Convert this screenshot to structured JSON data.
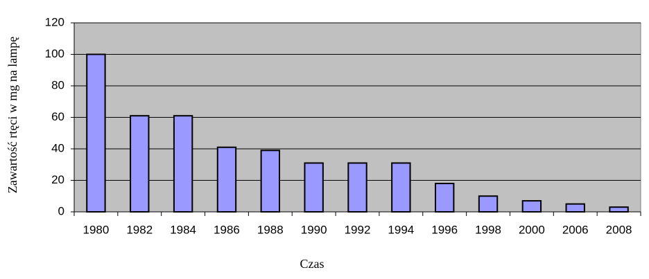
{
  "chart_data": {
    "type": "bar",
    "x_label": "Czas",
    "y_label": "Zawartość rtęci w mg na lampę",
    "categories": [
      "1980",
      "1982",
      "1984",
      "1986",
      "1988",
      "1990",
      "1992",
      "1994",
      "1996",
      "1998",
      "2000",
      "2006",
      "2008"
    ],
    "values": [
      100,
      61,
      61,
      41,
      39,
      31,
      31,
      31,
      18,
      10,
      7,
      5,
      3
    ],
    "color": "#9999ff",
    "ylim": [
      0,
      120
    ],
    "yticks": [
      0,
      20,
      40,
      60,
      80,
      100,
      120
    ],
    "grid": true
  }
}
